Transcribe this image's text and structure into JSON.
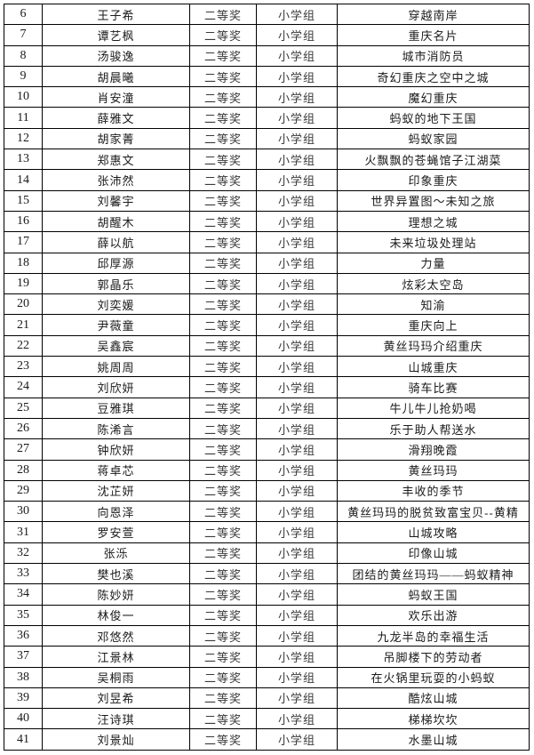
{
  "colors": {
    "background": "#ffffff",
    "border": "#000000",
    "text": "#1a1a1a"
  },
  "table": {
    "rows": [
      {
        "no": "6",
        "name": "王子希",
        "award": "二等奖",
        "group": "小学组",
        "title": "穿越南岸"
      },
      {
        "no": "7",
        "name": "谭艺枫",
        "award": "二等奖",
        "group": "小学组",
        "title": "重庆名片"
      },
      {
        "no": "8",
        "name": "汤骏逸",
        "award": "二等奖",
        "group": "小学组",
        "title": "城市消防员"
      },
      {
        "no": "9",
        "name": "胡晨曦",
        "award": "二等奖",
        "group": "小学组",
        "title": "奇幻重庆之空中之城"
      },
      {
        "no": "10",
        "name": "肖安潼",
        "award": "二等奖",
        "group": "小学组",
        "title": "魔幻重庆"
      },
      {
        "no": "11",
        "name": "薛雅文",
        "award": "二等奖",
        "group": "小学组",
        "title": "蚂蚁的地下王国"
      },
      {
        "no": "12",
        "name": "胡家菁",
        "award": "二等奖",
        "group": "小学组",
        "title": "蚂蚁家园"
      },
      {
        "no": "13",
        "name": "郑惠文",
        "award": "二等奖",
        "group": "小学组",
        "title": "火飘飘的苍蝇馆子江湖菜"
      },
      {
        "no": "14",
        "name": "张沛然",
        "award": "二等奖",
        "group": "小学组",
        "title": "印象重庆"
      },
      {
        "no": "15",
        "name": "刘馨宇",
        "award": "二等奖",
        "group": "小学组",
        "title": "世界异置图～未知之旅"
      },
      {
        "no": "16",
        "name": "胡醒木",
        "award": "二等奖",
        "group": "小学组",
        "title": "理想之城"
      },
      {
        "no": "17",
        "name": "薛以航",
        "award": "二等奖",
        "group": "小学组",
        "title": "未来垃圾处理站"
      },
      {
        "no": "18",
        "name": "邱厚源",
        "award": "二等奖",
        "group": "小学组",
        "title": "力量"
      },
      {
        "no": "19",
        "name": "郭晶乐",
        "award": "二等奖",
        "group": "小学组",
        "title": "炫彩太空岛"
      },
      {
        "no": "20",
        "name": "刘奕媛",
        "award": "二等奖",
        "group": "小学组",
        "title": "知渝"
      },
      {
        "no": "21",
        "name": "尹薇童",
        "award": "二等奖",
        "group": "小学组",
        "title": "重庆向上"
      },
      {
        "no": "22",
        "name": "吴鑫宸",
        "award": "二等奖",
        "group": "小学组",
        "title": "黄丝玛玛介绍重庆"
      },
      {
        "no": "23",
        "name": "姚周周",
        "award": "二等奖",
        "group": "小学组",
        "title": "山城重庆"
      },
      {
        "no": "24",
        "name": "刘欣妍",
        "award": "二等奖",
        "group": "小学组",
        "title": "骑车比赛"
      },
      {
        "no": "25",
        "name": "豆雅琪",
        "award": "二等奖",
        "group": "小学组",
        "title": "牛儿牛儿抢奶喝"
      },
      {
        "no": "26",
        "name": "陈浠言",
        "award": "二等奖",
        "group": "小学组",
        "title": "乐于助人帮送水"
      },
      {
        "no": "27",
        "name": "钟欣妍",
        "award": "二等奖",
        "group": "小学组",
        "title": "滑翔晚霞"
      },
      {
        "no": "28",
        "name": "蒋卓芯",
        "award": "二等奖",
        "group": "小学组",
        "title": "黄丝玛玛"
      },
      {
        "no": "29",
        "name": "沈芷妍",
        "award": "二等奖",
        "group": "小学组",
        "title": "丰收的季节"
      },
      {
        "no": "30",
        "name": "向恩泽",
        "award": "二等奖",
        "group": "小学组",
        "title": "黄丝玛玛的脱贫致富宝贝--黄精"
      },
      {
        "no": "31",
        "name": "罗安萱",
        "award": "二等奖",
        "group": "小学组",
        "title": "山城攻略"
      },
      {
        "no": "32",
        "name": "张泺",
        "award": "二等奖",
        "group": "小学组",
        "title": "印像山城"
      },
      {
        "no": "33",
        "name": "樊也溪",
        "award": "二等奖",
        "group": "小学组",
        "title": "团结的黄丝玛玛——蚂蚁精神"
      },
      {
        "no": "34",
        "name": "陈妙妍",
        "award": "二等奖",
        "group": "小学组",
        "title": "蚂蚁王国"
      },
      {
        "no": "35",
        "name": "林俊一",
        "award": "二等奖",
        "group": "小学组",
        "title": "欢乐出游"
      },
      {
        "no": "36",
        "name": "邓悠然",
        "award": "二等奖",
        "group": "小学组",
        "title": "九龙半岛的幸福生活"
      },
      {
        "no": "37",
        "name": "江景林",
        "award": "二等奖",
        "group": "小学组",
        "title": "吊脚楼下的劳动者"
      },
      {
        "no": "38",
        "name": "吴桐雨",
        "award": "二等奖",
        "group": "小学组",
        "title": "在火锅里玩耍的小蚂蚁"
      },
      {
        "no": "39",
        "name": "刘昱希",
        "award": "二等奖",
        "group": "小学组",
        "title": "酷炫山城"
      },
      {
        "no": "40",
        "name": "汪诗琪",
        "award": "二等奖",
        "group": "小学组",
        "title": "梯梯坎坎"
      },
      {
        "no": "41",
        "name": "刘景灿",
        "award": "二等奖",
        "group": "小学组",
        "title": "水墨山城"
      }
    ]
  }
}
